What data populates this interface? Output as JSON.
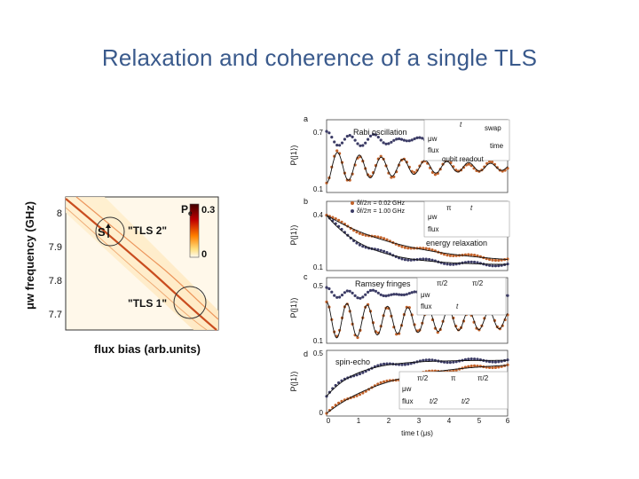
{
  "slide": {
    "title": "Relaxation and coherence of a single TLS"
  },
  "spectroscopy": {
    "y_axis_label": "μw frequency (GHz)",
    "x_axis_label": "flux bias (arb.units)",
    "y_ticks": [
      "8",
      "7.9",
      "7.8",
      "7.7"
    ],
    "colorbar_label": "P",
    "colorbar_subscript": "e",
    "colorbar_max": "0.3",
    "colorbar_min": "0",
    "label_tls2": "\"TLS 2\"",
    "label_tls1": "\"TLS 1\"",
    "label_s": "S",
    "colors": {
      "background": "#fff5e0",
      "line": "#c03000",
      "marker": "#333333"
    }
  },
  "panels": [
    {
      "letter": "a",
      "ylabel": "P(|1⟩)",
      "ytick_top": "0.7",
      "ytick_bottom": "0.1",
      "title": "Rabi oscillation",
      "inset": {
        "mw": "μw",
        "flux": "flux",
        "swap": "swap",
        "time": "time",
        "readout": "qubit readout",
        "t": "t"
      }
    },
    {
      "letter": "b",
      "ylabel": "P(|1⟩)",
      "ytick_top": "0.4",
      "ytick_bottom": "0.1",
      "legend": [
        "δf/2π = 0.02 GHz",
        "δf/2π = 1.00 GHz"
      ],
      "title": "energy relaxation",
      "inset": {
        "mw": "μw",
        "flux": "flux",
        "pi": "π",
        "t": "t"
      }
    },
    {
      "letter": "c",
      "ylabel": "P(|1⟩)",
      "ytick_top": "0.5",
      "ytick_bottom": "0.1",
      "title": "Ramsey fringes",
      "inset": {
        "mw": "μw",
        "flux": "flux",
        "pi1": "π/2",
        "pi2": "π/2",
        "t": "t"
      }
    },
    {
      "letter": "d",
      "ylabel": "P(|1⟩)",
      "ytick_top": "0.5",
      "ytick_bottom": "0",
      "title": "spin-echo",
      "inset": {
        "mw": "μw",
        "flux": "flux",
        "pi1": "π/2",
        "pi2": "π",
        "pi3": "π/2",
        "t1": "t/2",
        "t2": "t/2"
      }
    }
  ],
  "time_axis": {
    "label": "time t (μs)",
    "ticks": [
      "0",
      "1",
      "2",
      "3",
      "4",
      "5",
      "6"
    ]
  },
  "colors": {
    "series_a": "#3c3c66",
    "series_b": "#c2622a",
    "fit": "#111111",
    "pulse": "#3a8a3a"
  }
}
